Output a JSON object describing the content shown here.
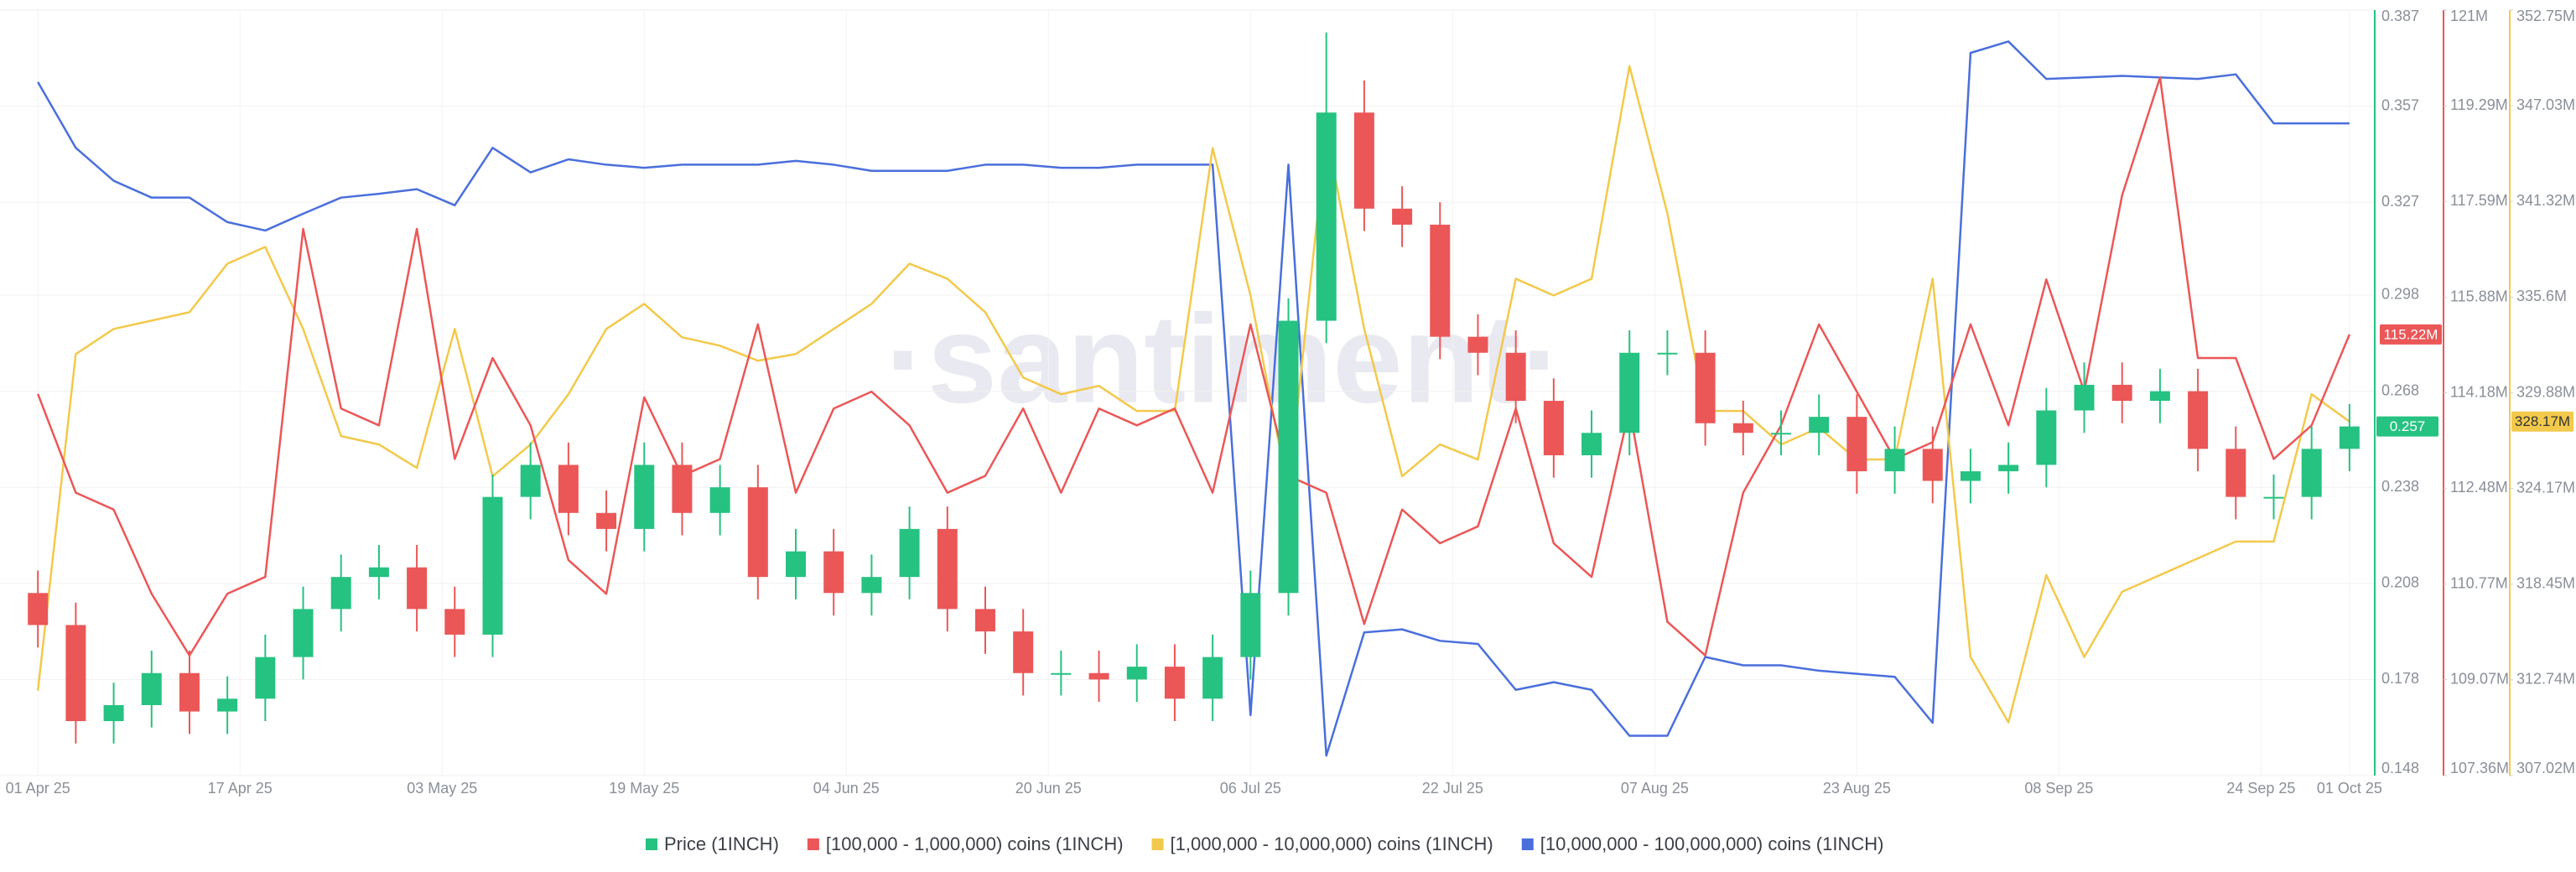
{
  "chart_data": {
    "type": "candlestick",
    "watermark": "·santiment·",
    "grid": true,
    "x": [
      "2025-04-01",
      "2025-04-04",
      "2025-04-07",
      "2025-04-10",
      "2025-04-13",
      "2025-04-16",
      "2025-04-19",
      "2025-04-22",
      "2025-04-25",
      "2025-04-28",
      "2025-05-01",
      "2025-05-04",
      "2025-05-07",
      "2025-05-10",
      "2025-05-13",
      "2025-05-16",
      "2025-05-19",
      "2025-05-22",
      "2025-05-25",
      "2025-05-28",
      "2025-05-31",
      "2025-06-03",
      "2025-06-06",
      "2025-06-09",
      "2025-06-12",
      "2025-06-15",
      "2025-06-18",
      "2025-06-21",
      "2025-06-24",
      "2025-06-27",
      "2025-06-30",
      "2025-07-03",
      "2025-07-06",
      "2025-07-09",
      "2025-07-12",
      "2025-07-15",
      "2025-07-18",
      "2025-07-21",
      "2025-07-24",
      "2025-07-27",
      "2025-07-30",
      "2025-08-02",
      "2025-08-05",
      "2025-08-08",
      "2025-08-11",
      "2025-08-14",
      "2025-08-17",
      "2025-08-20",
      "2025-08-23",
      "2025-08-26",
      "2025-08-29",
      "2025-09-01",
      "2025-09-04",
      "2025-09-07",
      "2025-09-10",
      "2025-09-13",
      "2025-09-16",
      "2025-09-19",
      "2025-09-22",
      "2025-09-25",
      "2025-09-28",
      "2025-10-01"
    ],
    "xlim": [
      "2025-03-29",
      "2025-10-03"
    ],
    "xticks": [
      {
        "value": "2025-04-01",
        "label": "01 Apr 25"
      },
      {
        "value": "2025-04-17",
        "label": "17 Apr 25"
      },
      {
        "value": "2025-05-03",
        "label": "03 May 25"
      },
      {
        "value": "2025-05-19",
        "label": "19 May 25"
      },
      {
        "value": "2025-06-04",
        "label": "04 Jun 25"
      },
      {
        "value": "2025-06-20",
        "label": "20 Jun 25"
      },
      {
        "value": "2025-07-06",
        "label": "06 Jul 25"
      },
      {
        "value": "2025-07-22",
        "label": "22 Jul 25"
      },
      {
        "value": "2025-08-07",
        "label": "07 Aug 25"
      },
      {
        "value": "2025-08-23",
        "label": "23 Aug 25"
      },
      {
        "value": "2025-09-08",
        "label": "08 Sep 25"
      },
      {
        "value": "2025-09-24",
        "label": "24 Sep 25"
      },
      {
        "value": "2025-10-01",
        "label": "01 Oct 25"
      }
    ],
    "ylim": [
      0.148,
      0.387
    ],
    "yticks": [
      0.387,
      0.357,
      0.327,
      0.298,
      0.268,
      0.238,
      0.208,
      0.178,
      0.148
    ],
    "y_axis_color": "#26c281",
    "y2lim": [
      107360000,
      121000000
    ],
    "y2_axis_color": "#eb5757",
    "y2ticks": [
      {
        "value": 121000000,
        "label": "121M"
      },
      {
        "value": 119290000,
        "label": "119.29M"
      },
      {
        "value": 117590000,
        "label": "117.59M"
      },
      {
        "value": 115880000,
        "label": "115.88M"
      },
      {
        "value": 114180000,
        "label": "114.18M"
      },
      {
        "value": 112480000,
        "label": "112.48M"
      },
      {
        "value": 110770000,
        "label": "110.77M"
      },
      {
        "value": 109070000,
        "label": "109.07M"
      },
      {
        "value": 107360000,
        "label": "107.36M"
      }
    ],
    "y3lim": [
      307020000,
      352750000
    ],
    "y3_axis_color": "#f2c94c",
    "y3ticks": [
      {
        "value": 352750000,
        "label": "352.75M"
      },
      {
        "value": 347030000,
        "label": "347.03M"
      },
      {
        "value": 341320000,
        "label": "341.32M"
      },
      {
        "value": 335600000,
        "label": "335.6M"
      },
      {
        "value": 329880000,
        "label": "329.88M"
      },
      {
        "value": 324170000,
        "label": "324.17M"
      },
      {
        "value": 318450000,
        "label": "318.45M"
      },
      {
        "value": 312740000,
        "label": "312.74M"
      },
      {
        "value": 307020000,
        "label": "307.02M"
      }
    ],
    "y4lim": [
      0,
      100
    ],
    "series": [
      {
        "name": "Price (1INCH)",
        "color": "#26c281",
        "down_color": "#eb5757",
        "axis": "y",
        "open": [
          0.205,
          0.195,
          0.165,
          0.17,
          0.18,
          0.168,
          0.172,
          0.185,
          0.2,
          0.21,
          0.213,
          0.2,
          0.192,
          0.235,
          0.245,
          0.23,
          0.225,
          0.245,
          0.23,
          0.238,
          0.21,
          0.218,
          0.205,
          0.21,
          0.225,
          0.2,
          0.193,
          0.18,
          0.18,
          0.178,
          0.182,
          0.172,
          0.185,
          0.205,
          0.29,
          0.355,
          0.325,
          0.32,
          0.285,
          0.28,
          0.265,
          0.248,
          0.255,
          0.28,
          0.28,
          0.258,
          0.255,
          0.255,
          0.26,
          0.243,
          0.25,
          0.24,
          0.243,
          0.245,
          0.262,
          0.27,
          0.265,
          0.268,
          0.25,
          0.235,
          0.235,
          0.25
        ],
        "high": [
          0.212,
          0.202,
          0.177,
          0.187,
          0.187,
          0.179,
          0.192,
          0.207,
          0.217,
          0.22,
          0.22,
          0.207,
          0.242,
          0.252,
          0.252,
          0.237,
          0.252,
          0.252,
          0.245,
          0.245,
          0.225,
          0.225,
          0.217,
          0.232,
          0.232,
          0.207,
          0.2,
          0.187,
          0.187,
          0.189,
          0.189,
          0.192,
          0.212,
          0.297,
          0.38,
          0.365,
          0.332,
          0.327,
          0.292,
          0.287,
          0.272,
          0.262,
          0.287,
          0.287,
          0.287,
          0.265,
          0.262,
          0.267,
          0.267,
          0.257,
          0.257,
          0.25,
          0.252,
          0.269,
          0.277,
          0.277,
          0.275,
          0.275,
          0.257,
          0.242,
          0.257,
          0.264
        ],
        "low": [
          0.188,
          0.158,
          0.158,
          0.163,
          0.161,
          0.161,
          0.165,
          0.178,
          0.193,
          0.203,
          0.193,
          0.185,
          0.185,
          0.228,
          0.223,
          0.218,
          0.218,
          0.223,
          0.223,
          0.203,
          0.203,
          0.198,
          0.198,
          0.203,
          0.193,
          0.186,
          0.173,
          0.173,
          0.171,
          0.171,
          0.165,
          0.165,
          0.178,
          0.198,
          0.283,
          0.318,
          0.313,
          0.278,
          0.273,
          0.258,
          0.241,
          0.241,
          0.248,
          0.273,
          0.251,
          0.248,
          0.248,
          0.248,
          0.236,
          0.236,
          0.233,
          0.233,
          0.236,
          0.238,
          0.255,
          0.258,
          0.258,
          0.243,
          0.228,
          0.228,
          0.228,
          0.243
        ],
        "close": [
          0.195,
          0.165,
          0.17,
          0.18,
          0.168,
          0.172,
          0.185,
          0.2,
          0.21,
          0.213,
          0.2,
          0.192,
          0.235,
          0.245,
          0.23,
          0.225,
          0.245,
          0.23,
          0.238,
          0.21,
          0.218,
          0.205,
          0.21,
          0.225,
          0.2,
          0.193,
          0.18,
          0.18,
          0.178,
          0.182,
          0.172,
          0.185,
          0.205,
          0.29,
          0.355,
          0.325,
          0.32,
          0.285,
          0.28,
          0.265,
          0.248,
          0.255,
          0.28,
          0.28,
          0.258,
          0.255,
          0.255,
          0.26,
          0.243,
          0.25,
          0.24,
          0.243,
          0.245,
          0.262,
          0.27,
          0.265,
          0.268,
          0.25,
          0.235,
          0.235,
          0.25,
          0.257
        ]
      },
      {
        "name": "[100,000 - 1,000,000) coins (1INCH)",
        "color": "#eb5757",
        "axis": "y2",
        "last_value_label": "115.22M",
        "values": [
          114160000,
          112400000,
          112100000,
          110600000,
          109500000,
          110600000,
          110900000,
          117100000,
          113900000,
          113600000,
          117100000,
          113000000,
          114800000,
          113600000,
          111200000,
          110600000,
          114100000,
          112700000,
          113000000,
          115400000,
          112400000,
          113900000,
          114200000,
          113600000,
          112400000,
          112700000,
          113900000,
          112400000,
          113900000,
          113600000,
          113900000,
          112400000,
          115400000,
          112700000,
          112400000,
          110060000,
          112100000,
          111500000,
          111800000,
          113900000,
          111500000,
          110900000,
          113900000,
          110100000,
          109500000,
          112400000,
          113600000,
          115400000,
          114200000,
          113000000,
          113300000,
          115400000,
          113600000,
          116200000,
          114200000,
          117700000,
          119800000,
          114800000,
          114800000,
          113000000,
          113600000,
          115220000
        ]
      },
      {
        "name": "[1,000,000 - 10,000,000) coins (1INCH)",
        "color": "#f2c94c",
        "axis": "y3",
        "last_value_label": "328.17M",
        "values": [
          312100000,
          332200000,
          333700000,
          334200000,
          334700000,
          337600000,
          338600000,
          333700000,
          327300000,
          326800000,
          325400000,
          333700000,
          324900000,
          326800000,
          329800000,
          333700000,
          335200000,
          333200000,
          332700000,
          331800000,
          332200000,
          333700000,
          335200000,
          337600000,
          336700000,
          334700000,
          330800000,
          329800000,
          330300000,
          328800000,
          328800000,
          344500000,
          335700000,
          323900000,
          345500000,
          333700000,
          324900000,
          326800000,
          325900000,
          336700000,
          335700000,
          336700000,
          349400000,
          340600000,
          328800000,
          328800000,
          326800000,
          327800000,
          325900000,
          325900000,
          336700000,
          314100000,
          310200000,
          319000000,
          314100000,
          318000000,
          319000000,
          320000000,
          321000000,
          321000000,
          329800000,
          328170000
        ]
      },
      {
        "name": "[10,000,000 - 100,000,000) coins (1INCH)",
        "color": "#4a6fdc",
        "axis": "y4",
        "values": [
          90.6,
          82,
          77.7,
          75.5,
          75.5,
          72.3,
          71.2,
          73.4,
          75.5,
          76,
          76.6,
          74.5,
          82,
          78.8,
          80.5,
          79.8,
          79.4,
          79.8,
          79.8,
          79.8,
          80.3,
          79.8,
          79,
          79,
          79,
          79.8,
          79.8,
          79.4,
          79.4,
          79.8,
          79.8,
          79.8,
          7.9,
          79.8,
          2.6,
          18.7,
          19.1,
          17.6,
          17.2,
          11.2,
          12.2,
          11.2,
          5.2,
          5.2,
          15.5,
          14.4,
          14.4,
          13.7,
          13.3,
          12.9,
          6.9,
          94.4,
          95.9,
          91,
          91.2,
          91.4,
          91.2,
          91,
          91.6,
          85.2,
          85.2,
          85.2
        ]
      }
    ]
  }
}
